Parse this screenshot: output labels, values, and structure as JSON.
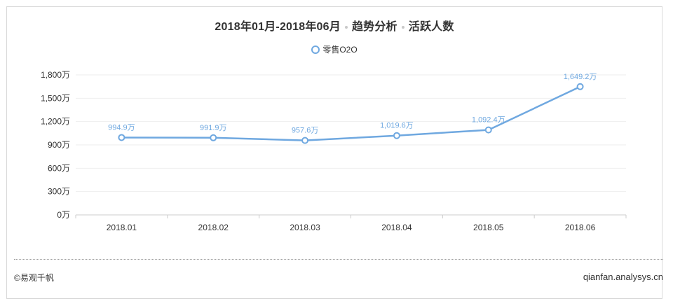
{
  "chart": {
    "title_parts": [
      "2018年01月-2018年06月",
      "趋势分析",
      "活跃人数"
    ],
    "legend_label": "零售O2O"
  },
  "footer": {
    "copyright": "©易观千帆",
    "site": "qianfan.analysys.cn"
  },
  "colors": {
    "line": "#6fa8e0",
    "label": "#6fa8e0",
    "grid": "#eeeeee",
    "axis": "#cccccc",
    "text": "#333333"
  },
  "chart_data": {
    "type": "line",
    "categories": [
      "2018.01",
      "2018.02",
      "2018.03",
      "2018.04",
      "2018.05",
      "2018.06"
    ],
    "series": [
      {
        "name": "零售O2O",
        "values": [
          994.9,
          991.9,
          957.6,
          1019.6,
          1092.4,
          1649.2
        ],
        "labels": [
          "994.9万",
          "991.9万",
          "957.6万",
          "1,019.6万",
          "1,092.4万",
          "1,649.2万"
        ]
      }
    ],
    "yticks": [
      0,
      300,
      600,
      900,
      1200,
      1500,
      1800
    ],
    "ytick_labels": [
      "0万",
      "300万",
      "600万",
      "900万",
      "1,200万",
      "1,500万",
      "1,800万"
    ],
    "ylim": [
      0,
      1800
    ],
    "grid": true,
    "legend_position": "top"
  }
}
